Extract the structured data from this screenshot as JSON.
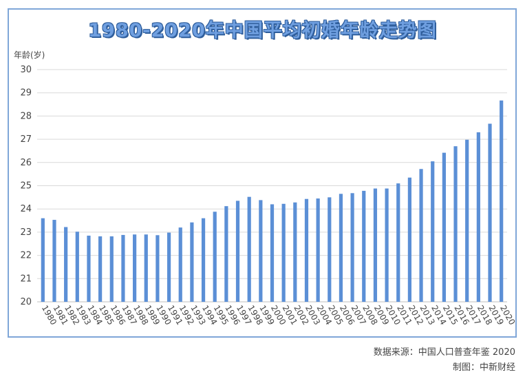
{
  "chart_data": {
    "type": "bar",
    "title": "1980-2020年中国平均初婚年龄走势图",
    "ylabel": "年龄(岁)",
    "ylim": [
      20,
      30
    ],
    "yticks": [
      "20",
      "21",
      "22",
      "23",
      "24",
      "25",
      "26",
      "27",
      "28",
      "29",
      "30"
    ],
    "grid": true,
    "bar_color": "#5b8fd6",
    "categories": [
      "1980",
      "1981",
      "1982",
      "1983",
      "1984",
      "1985",
      "1986",
      "1987",
      "1988",
      "1989",
      "1990",
      "1991",
      "1992",
      "1993",
      "1994",
      "1995",
      "1996",
      "1997",
      "1998",
      "1999",
      "2000",
      "2001",
      "2002",
      "2003",
      "2004",
      "2005",
      "2006",
      "2007",
      "2008",
      "2009",
      "2010",
      "2011",
      "2012",
      "2013",
      "2014",
      "2015",
      "2016",
      "2017",
      "2018",
      "2019",
      "2020"
    ],
    "values": [
      23.6,
      23.53,
      23.22,
      23.02,
      22.85,
      22.82,
      22.82,
      22.88,
      22.9,
      22.9,
      22.87,
      22.98,
      23.2,
      23.42,
      23.6,
      23.88,
      24.12,
      24.35,
      24.52,
      24.38,
      24.2,
      24.22,
      24.28,
      24.43,
      24.45,
      24.5,
      24.65,
      24.68,
      24.78,
      24.88,
      24.88,
      25.1,
      25.35,
      25.72,
      26.05,
      26.42,
      26.7,
      26.98,
      27.3,
      27.67,
      28.67
    ]
  },
  "footer": {
    "source": "数据来源：中国人口普查年鉴 2020",
    "credit": "制图：中新财经"
  }
}
